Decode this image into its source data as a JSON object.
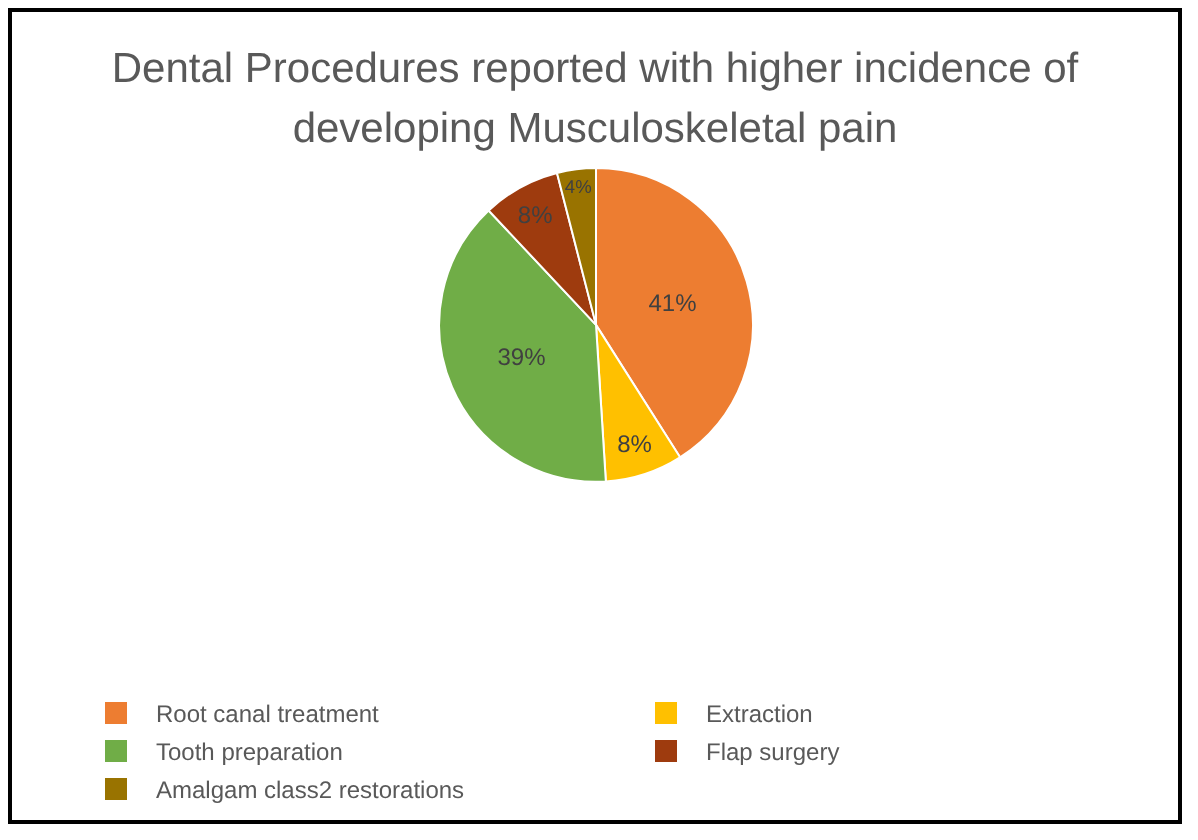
{
  "chart_data": {
    "type": "pie",
    "title": "Dental Procedures reported with higher incidence of developing  Musculoskeletal pain",
    "categories": [
      "Root canal treatment",
      "Extraction",
      "Tooth preparation",
      "Flap surgery",
      "Amalgam class2 restorations"
    ],
    "values": [
      41,
      8,
      39,
      8,
      4
    ],
    "value_labels": [
      "41%",
      "8%",
      "39%",
      "8%",
      "4%"
    ],
    "colors": [
      "#ed7d31",
      "#ffc000",
      "#70ad47",
      "#9e3b0e",
      "#997300"
    ],
    "legend": "bottom"
  }
}
